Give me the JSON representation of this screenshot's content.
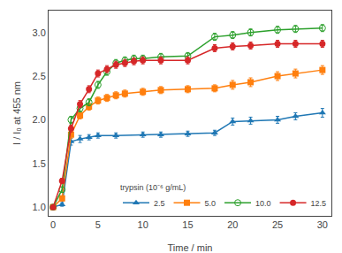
{
  "chart_data": {
    "type": "line",
    "xlabel": "Time / min",
    "ylabel": "I / I₀ at 455 nm",
    "xlim": [
      -0.5,
      31
    ],
    "ylim": [
      0.9,
      3.25
    ],
    "xticks": [
      0,
      5,
      10,
      15,
      20,
      25,
      30
    ],
    "yticks": [
      {
        "value": 1.0,
        "label": "1.0"
      },
      1.5,
      {
        "value": 2.0,
        "label": "2.0"
      },
      2.5,
      {
        "value": 3.0,
        "label": "3.0"
      }
    ],
    "grid": false,
    "legend": "lower right",
    "legend_title": "trypsin (10⁻⁶ g/mL)",
    "series": [
      {
        "name": "2.5",
        "marker": "triangle-up",
        "x": [
          0,
          1,
          2,
          3,
          4,
          5,
          7,
          10,
          12,
          15,
          18,
          20,
          22,
          25,
          27,
          30
        ],
        "values": [
          1.0,
          1.03,
          1.75,
          1.78,
          1.8,
          1.82,
          1.82,
          1.83,
          1.83,
          1.84,
          1.85,
          1.98,
          1.99,
          2.0,
          2.04,
          2.08
        ],
        "errors": [
          0.02,
          0.02,
          0.04,
          0.04,
          0.03,
          0.03,
          0.03,
          0.03,
          0.03,
          0.03,
          0.03,
          0.04,
          0.04,
          0.04,
          0.04,
          0.05
        ]
      },
      {
        "name": "5.0",
        "marker": "square",
        "x": [
          0,
          1,
          2,
          3,
          4,
          5,
          6,
          7,
          8,
          10,
          12,
          15,
          18,
          20,
          22,
          25,
          27,
          30
        ],
        "values": [
          1.0,
          1.1,
          1.83,
          2.05,
          2.15,
          2.22,
          2.25,
          2.28,
          2.3,
          2.32,
          2.34,
          2.35,
          2.36,
          2.4,
          2.43,
          2.5,
          2.53,
          2.57
        ],
        "errors": [
          0.02,
          0.03,
          0.04,
          0.04,
          0.04,
          0.04,
          0.04,
          0.04,
          0.04,
          0.04,
          0.04,
          0.04,
          0.04,
          0.05,
          0.05,
          0.05,
          0.05,
          0.05
        ]
      },
      {
        "name": "10.0",
        "marker": "circle-open",
        "x": [
          0,
          1,
          2,
          3,
          4,
          5,
          6,
          7,
          8,
          9,
          10,
          12,
          15,
          18,
          20,
          22,
          25,
          27,
          30
        ],
        "values": [
          1.0,
          1.2,
          2.0,
          2.13,
          2.2,
          2.4,
          2.55,
          2.65,
          2.68,
          2.7,
          2.7,
          2.72,
          2.73,
          2.95,
          2.97,
          3.0,
          3.03,
          3.04,
          3.05
        ],
        "errors": [
          0.02,
          0.03,
          0.04,
          0.04,
          0.04,
          0.04,
          0.04,
          0.04,
          0.04,
          0.04,
          0.04,
          0.04,
          0.04,
          0.04,
          0.04,
          0.04,
          0.04,
          0.04,
          0.04
        ]
      },
      {
        "name": "12.5",
        "marker": "circle",
        "x": [
          0,
          1,
          2,
          3,
          4,
          5,
          6,
          7,
          8,
          9,
          10,
          12,
          15,
          18,
          20,
          22,
          25,
          27,
          30
        ],
        "values": [
          1.0,
          1.3,
          1.9,
          2.18,
          2.35,
          2.53,
          2.58,
          2.63,
          2.65,
          2.67,
          2.68,
          2.68,
          2.68,
          2.82,
          2.84,
          2.85,
          2.87,
          2.87,
          2.87
        ],
        "errors": [
          0.02,
          0.03,
          0.04,
          0.04,
          0.04,
          0.04,
          0.04,
          0.04,
          0.04,
          0.04,
          0.04,
          0.04,
          0.04,
          0.04,
          0.04,
          0.04,
          0.04,
          0.04,
          0.04
        ]
      }
    ]
  }
}
